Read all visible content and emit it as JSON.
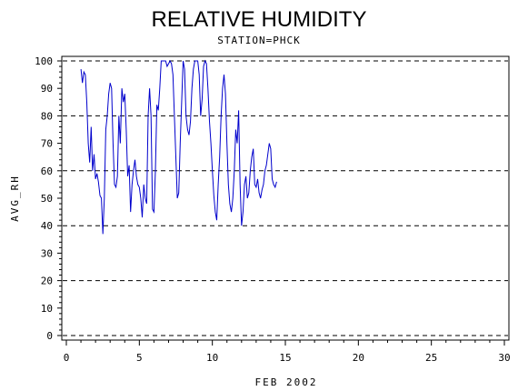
{
  "chart_data": {
    "type": "line",
    "title": "RELATIVE HUMIDITY",
    "subtitle": "STATION=PHCK",
    "xlabel": "FEB 2002",
    "ylabel": "AVG_RH",
    "xlim": [
      0,
      30
    ],
    "ylim": [
      0,
      100
    ],
    "x_ticks": [
      0,
      5,
      10,
      15,
      20,
      25,
      30
    ],
    "y_ticks": [
      0,
      10,
      20,
      30,
      40,
      50,
      60,
      70,
      80,
      90,
      100
    ],
    "y_gridlines": [
      0,
      20,
      40,
      60,
      80,
      100
    ],
    "grid": "dashed horizontal",
    "legend": "none",
    "line_color": "#0000cc",
    "series": [
      {
        "x": [
          1.0,
          1.1,
          1.2,
          1.3,
          1.4,
          1.5,
          1.6,
          1.7,
          1.8,
          1.9,
          2.0,
          2.1,
          2.2,
          2.3,
          2.4,
          2.5,
          2.6,
          2.7,
          2.8,
          2.9,
          3.0,
          3.1,
          3.2,
          3.3,
          3.4,
          3.5,
          3.6,
          3.7,
          3.8,
          3.9,
          4.0,
          4.1,
          4.2,
          4.3,
          4.4,
          4.5,
          4.6,
          4.7,
          4.8,
          4.9,
          5.0,
          5.1,
          5.2,
          5.3,
          5.4,
          5.5,
          5.6,
          5.7,
          5.8,
          5.9,
          6.0,
          6.1,
          6.2,
          6.3,
          6.4,
          6.5,
          6.6,
          6.7,
          6.8,
          6.9,
          7.0,
          7.1,
          7.2,
          7.3,
          7.4,
          7.5,
          7.6,
          7.7,
          7.8,
          7.9,
          8.0,
          8.1,
          8.2,
          8.3,
          8.4,
          8.5,
          8.6,
          8.7,
          8.8,
          8.9,
          9.0,
          9.1,
          9.2,
          9.3,
          9.4,
          9.5,
          9.6,
          9.7,
          9.8,
          9.9,
          10.0,
          10.1,
          10.2,
          10.3,
          10.4,
          10.5,
          10.6,
          10.7,
          10.8,
          10.9,
          11.0,
          11.1,
          11.2,
          11.3,
          11.4,
          11.5,
          11.6,
          11.7,
          11.8,
          11.9,
          12.0,
          12.1,
          12.2,
          12.3,
          12.4,
          12.5,
          12.6,
          12.7,
          12.8,
          12.9,
          13.0,
          13.1,
          13.2,
          13.3,
          13.4,
          13.5,
          13.6,
          13.7,
          13.8,
          13.9,
          14.0,
          14.1,
          14.2,
          14.3,
          14.4
        ],
        "values": [
          97,
          92,
          96,
          95,
          85,
          70,
          63,
          76,
          60,
          66,
          57,
          59,
          56,
          51,
          50,
          37,
          50,
          75,
          80,
          88,
          92,
          90,
          70,
          55,
          54,
          58,
          80,
          70,
          90,
          85,
          88,
          75,
          58,
          62,
          45,
          55,
          60,
          64,
          58,
          55,
          54,
          50,
          43,
          55,
          50,
          48,
          80,
          90,
          80,
          46,
          45,
          60,
          84,
          82,
          90,
          100,
          100,
          100,
          100,
          98,
          99,
          100,
          99,
          95,
          80,
          65,
          50,
          52,
          70,
          85,
          100,
          97,
          80,
          75,
          73,
          78,
          90,
          97,
          100,
          100,
          100,
          95,
          80,
          86,
          98,
          100,
          99,
          90,
          78,
          70,
          60,
          51,
          45,
          42,
          55,
          65,
          80,
          90,
          95,
          88,
          70,
          55,
          48,
          45,
          50,
          60,
          75,
          70,
          82,
          55,
          40,
          45,
          55,
          58,
          50,
          52,
          60,
          65,
          68,
          55,
          54,
          57,
          52,
          50,
          53,
          55,
          60,
          62,
          66,
          70,
          68,
          57,
          55,
          54,
          56
        ]
      }
    ]
  }
}
